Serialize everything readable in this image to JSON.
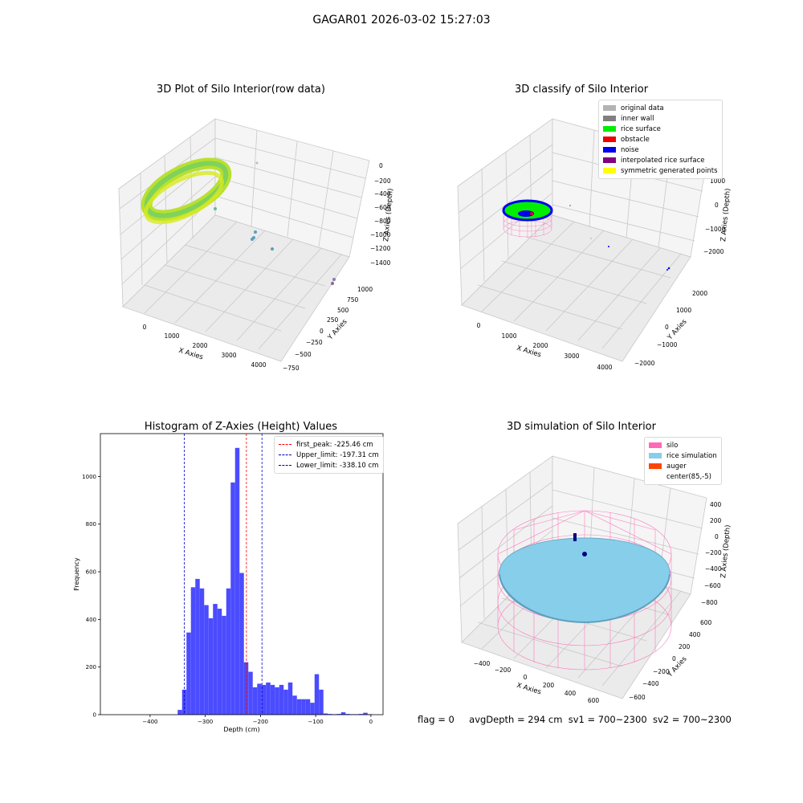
{
  "suptitle": "GAGAR01 2026-03-02 15:27:03",
  "panels": {
    "raw": {
      "title": "3D Plot of Silo Interior(row data)",
      "xlabel": "X Axies",
      "ylabel": "Y Axies",
      "zlabel": "Z Axies (Depth)",
      "xticks": [
        "0",
        "1000",
        "2000",
        "3000",
        "4000"
      ],
      "yticks": [
        "−750",
        "−500",
        "−250",
        "0",
        "250",
        "500",
        "750",
        "1000"
      ],
      "zticks": [
        "0",
        "−200",
        "−400",
        "−600",
        "−800",
        "−1000",
        "−1200",
        "−1400"
      ]
    },
    "classify": {
      "title": "3D classify of Silo Interior",
      "xlabel": "X Axies",
      "ylabel": "Y Axies",
      "zlabel": "Z Axies (Depth)",
      "xticks": [
        "0",
        "1000",
        "2000",
        "3000",
        "4000"
      ],
      "yticks": [
        "−2000",
        "−1000",
        "0",
        "1000",
        "2000"
      ],
      "zticks": [
        "1000",
        "0",
        "−1000",
        "−2000"
      ],
      "legend": [
        {
          "label": "original data",
          "color": "#b3b3b3"
        },
        {
          "label": "inner wall",
          "color": "#808080"
        },
        {
          "label": "rice surface",
          "color": "#00ee00"
        },
        {
          "label": "obstacle",
          "color": "#ee0000"
        },
        {
          "label": "noise",
          "color": "#0000ee"
        },
        {
          "label": "interpolated rice surface",
          "color": "#800080"
        },
        {
          "label": "symmetric generated points",
          "color": "#ffff00"
        }
      ]
    },
    "simulation": {
      "title": "3D simulation of Silo Interior",
      "xlabel": "X Axies",
      "ylabel": "Y Axies",
      "zlabel": "Z Axies (Depth)",
      "xticks": [
        "−400",
        "−200",
        "0",
        "200",
        "400",
        "600"
      ],
      "yticks": [
        "−600",
        "−400",
        "−200",
        "0",
        "200",
        "400",
        "600"
      ],
      "zticks": [
        "400",
        "200",
        "0",
        "−200",
        "−400",
        "−600",
        "−800"
      ],
      "legend": [
        {
          "label": "silo",
          "color": "#ff69b4"
        },
        {
          "label": "rice simulation",
          "color": "#87ceeb"
        },
        {
          "label": "auger",
          "color": "#ff4500"
        },
        {
          "label": "center(85,-5)",
          "color": "#ffffff"
        }
      ]
    }
  },
  "footer": {
    "flag": "flag = 0",
    "avg_depth": "avgDepth = 294 cm",
    "sv1": "sv1 = 700~2300",
    "sv2": "sv2 = 700~2300"
  },
  "chart_data": [
    {
      "type": "bar",
      "title": "Histogram of Z-Axies (Height) Values",
      "xlabel": "Depth (cm)",
      "ylabel": "Frequency",
      "xlim": [
        -490,
        22
      ],
      "ylim": [
        0,
        1180
      ],
      "xticks": [
        -400,
        -300,
        -200,
        -100,
        0
      ],
      "yticks": [
        0,
        200,
        400,
        600,
        800,
        1000
      ],
      "bin_width": 8,
      "bins_start": [
        -350,
        -342,
        -334,
        -326,
        -318,
        -310,
        -302,
        -294,
        -286,
        -278,
        -270,
        -262,
        -254,
        -246,
        -238,
        -230,
        -222,
        -214,
        -206,
        -198,
        -190,
        -182,
        -174,
        -166,
        -158,
        -150,
        -142,
        -134,
        -126,
        -118,
        -110,
        -102,
        -94,
        -86,
        -78,
        -70,
        -62,
        -54,
        -46,
        -38,
        -30,
        -22,
        -14,
        -6
      ],
      "values": [
        20,
        105,
        345,
        535,
        570,
        530,
        460,
        405,
        465,
        445,
        415,
        530,
        975,
        1120,
        595,
        220,
        180,
        115,
        130,
        125,
        135,
        125,
        115,
        125,
        105,
        135,
        80,
        65,
        65,
        65,
        50,
        170,
        105,
        5,
        3,
        2,
        3,
        10,
        3,
        2,
        2,
        3,
        8,
        2
      ],
      "bar_color": "#4b4bff",
      "vlines": [
        {
          "name": "first_peak",
          "label": "first_peak: -225.46 cm",
          "x": -225.46,
          "color": "#ff0000"
        },
        {
          "name": "Upper_limit",
          "label": "Upper_limit: -197.31 cm",
          "x": -197.31,
          "color": "#0000cc"
        },
        {
          "name": "Lower_limit",
          "label": "Lower_limit: -338.10 cm",
          "x": -338.1,
          "color": "#0000cc"
        }
      ],
      "legend_position": "top-right"
    }
  ]
}
